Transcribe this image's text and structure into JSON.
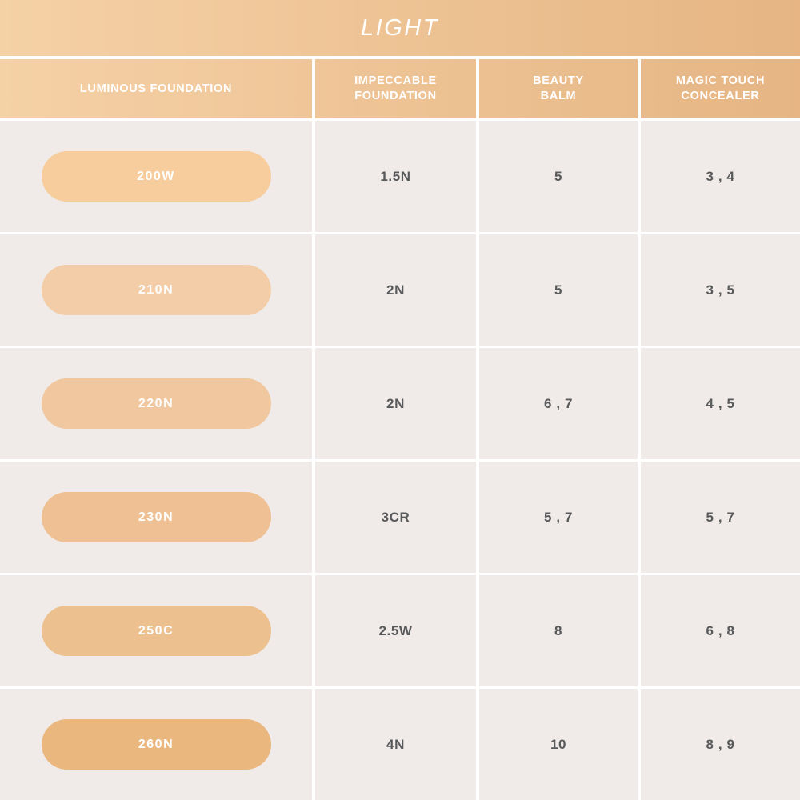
{
  "title": "LIGHT",
  "colors": {
    "banner_gradient_left": "#f5d1a6",
    "banner_gradient_right": "#e6b583",
    "cell_background": "#f0ebe8",
    "value_text": "#58595b",
    "header_text": "#ffffff"
  },
  "columns": [
    {
      "line1": "LUMINOUS FOUNDATION",
      "line2": ""
    },
    {
      "line1": "IMPECCABLE",
      "line2": "FOUNDATION"
    },
    {
      "line1": "BEAUTY",
      "line2": "BALM"
    },
    {
      "line1": "MAGIC TOUCH",
      "line2": "CONCEALER"
    }
  ],
  "rows": [
    {
      "shade": "200W",
      "swatch": "#f7cd9e",
      "impeccable": "1.5N",
      "beauty_balm": "5",
      "concealer": "3 , 4"
    },
    {
      "shade": "210N",
      "swatch": "#f3cda8",
      "impeccable": "2N",
      "beauty_balm": "5",
      "concealer": "3 , 5"
    },
    {
      "shade": "220N",
      "swatch": "#f0c79e",
      "impeccable": "2N",
      "beauty_balm": "6 , 7",
      "concealer": "4 , 5"
    },
    {
      "shade": "230N",
      "swatch": "#eec094",
      "impeccable": "3CR",
      "beauty_balm": "5 , 7",
      "concealer": "5 , 7"
    },
    {
      "shade": "250C",
      "swatch": "#edc08f",
      "impeccable": "2.5W",
      "beauty_balm": "8",
      "concealer": "6 , 8"
    },
    {
      "shade": "260N",
      "swatch": "#eab77f",
      "impeccable": "4N",
      "beauty_balm": "10",
      "concealer": "8 , 9"
    }
  ],
  "chart_data": {
    "type": "table",
    "title": "LIGHT",
    "columns": [
      "LUMINOUS FOUNDATION",
      "IMPECCABLE FOUNDATION",
      "BEAUTY BALM",
      "MAGIC TOUCH CONCEALER"
    ],
    "rows": [
      [
        "200W",
        "1.5N",
        "5",
        "3 , 4"
      ],
      [
        "210N",
        "2N",
        "5",
        "3 , 5"
      ],
      [
        "220N",
        "2N",
        "6 , 7",
        "4 , 5"
      ],
      [
        "230N",
        "3CR",
        "5 , 7",
        "5 , 7"
      ],
      [
        "250C",
        "2.5W",
        "8",
        "6 , 8"
      ],
      [
        "260N",
        "4N",
        "10",
        "8 , 9"
      ]
    ],
    "swatch_colors": [
      "#f7cd9e",
      "#f3cda8",
      "#f0c79e",
      "#eec094",
      "#edc08f",
      "#eab77f"
    ]
  }
}
